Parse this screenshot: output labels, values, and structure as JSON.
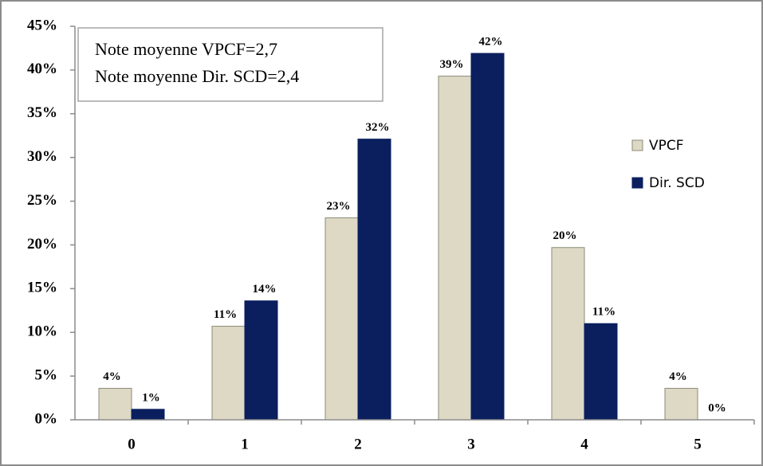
{
  "chart_data": {
    "type": "bar",
    "categories": [
      "0",
      "1",
      "2",
      "3",
      "4",
      "5"
    ],
    "series": [
      {
        "name": "VPCF",
        "color": "#ddd9c4",
        "values": [
          3.6,
          10.7,
          23.1,
          39.3,
          19.7,
          3.6
        ],
        "value_labels": [
          "4%",
          "11%",
          "23%",
          "39%",
          "20%",
          "4%"
        ]
      },
      {
        "name": "Dir. SCD",
        "color": "#0b1f5e",
        "values": [
          1.2,
          13.6,
          32.1,
          41.9,
          11.0,
          0
        ],
        "value_labels": [
          "1%",
          "14%",
          "32%",
          "42%",
          "11%",
          "0%"
        ]
      }
    ],
    "ylim": [
      0,
      45
    ],
    "yticks": [
      {
        "value": 0,
        "label": "0%"
      },
      {
        "value": 5,
        "label": "5%"
      },
      {
        "value": 10,
        "label": "10%"
      },
      {
        "value": 15,
        "label": "15%"
      },
      {
        "value": 20,
        "label": "20%"
      },
      {
        "value": 25,
        "label": "25%"
      },
      {
        "value": 30,
        "label": "30%"
      },
      {
        "value": 35,
        "label": "35%"
      },
      {
        "value": 40,
        "label": "40%"
      },
      {
        "value": 45,
        "label": "45%"
      }
    ],
    "annotations": [
      "Note moyenne VPCF=2,7",
      "Note moyenne Dir. SCD=2,4"
    ],
    "legend": "right",
    "grid": false
  }
}
